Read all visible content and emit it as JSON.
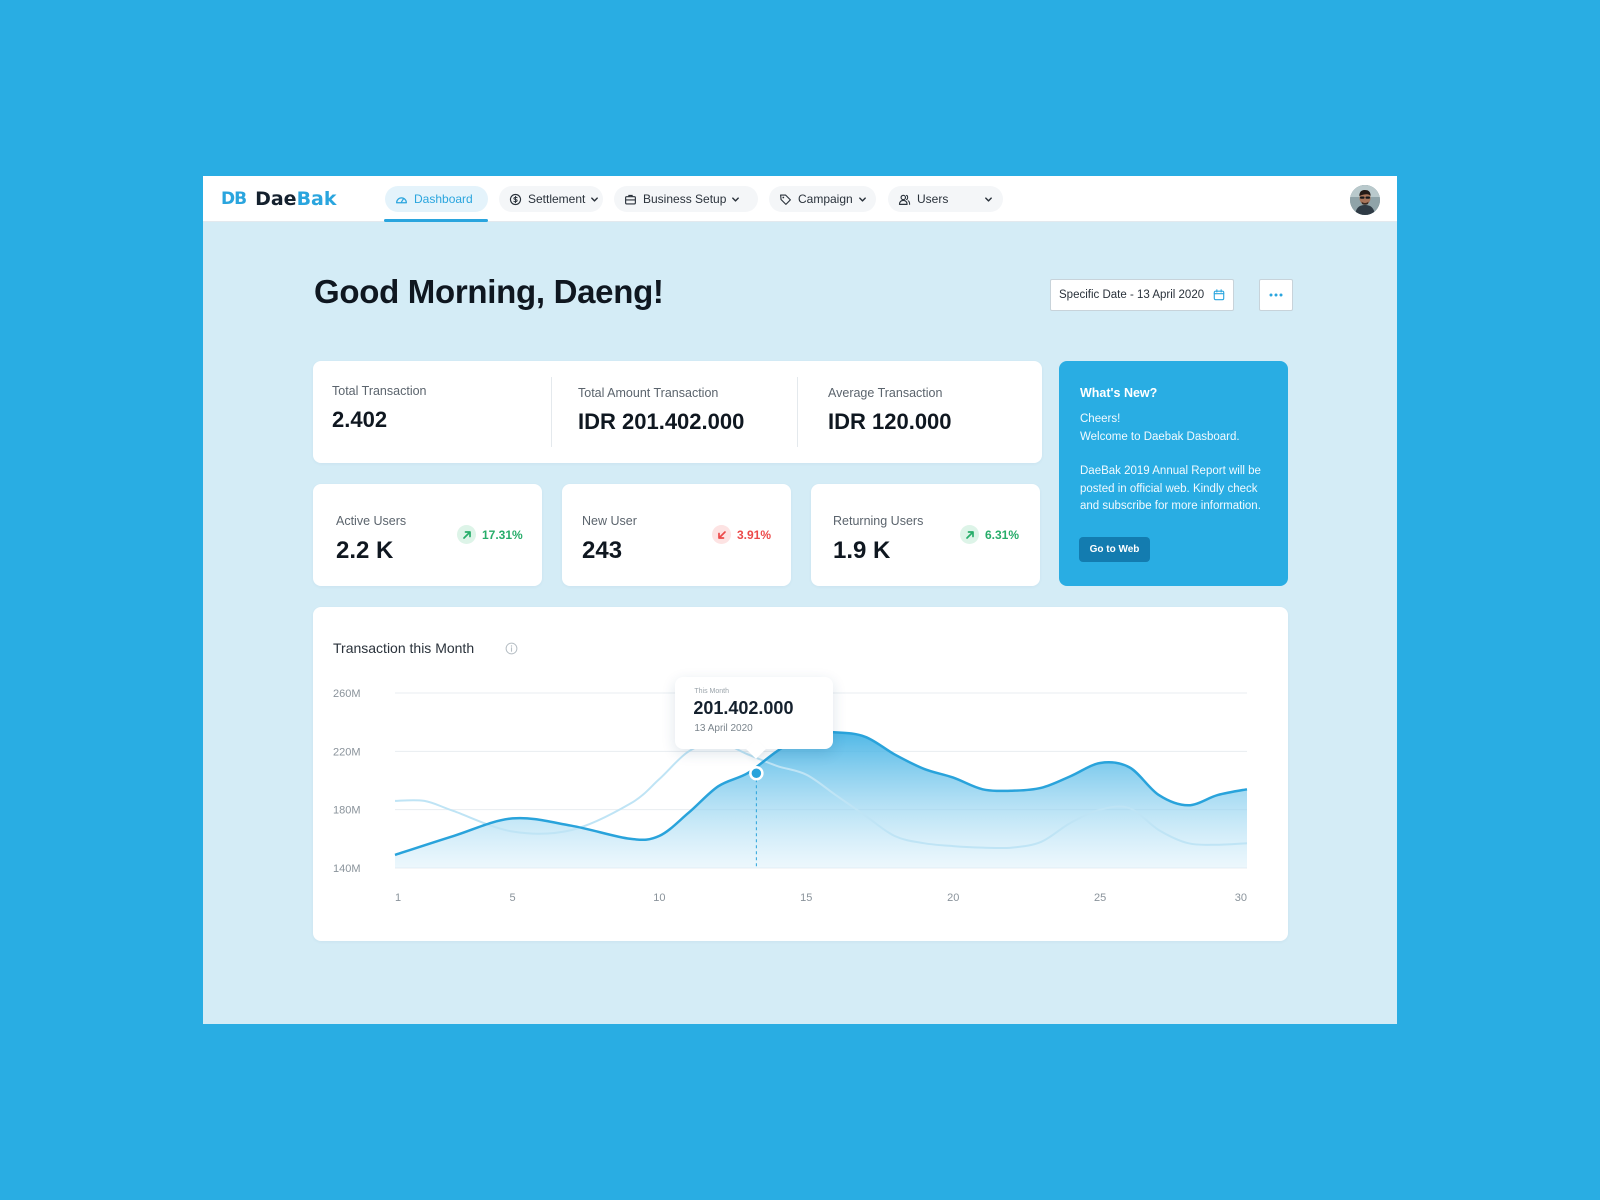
{
  "brand": {
    "mark": "DB",
    "name_primary": "Dae",
    "name_accent": "Bak",
    "accent_color": "#2aa5de"
  },
  "nav": {
    "items": [
      {
        "label": "Dashboard",
        "icon": "speedometer-icon",
        "active": true
      },
      {
        "label": "Settlement",
        "icon": "coin-icon"
      },
      {
        "label": "Business Setup",
        "icon": "briefcase-icon"
      },
      {
        "label": "Campaign",
        "icon": "tag-icon"
      },
      {
        "label": "Users",
        "icon": "users-icon"
      }
    ]
  },
  "header": {
    "greeting": "Good Morning, Daeng!",
    "date_filter": "Specific Date - 13 April 2020"
  },
  "summary": [
    {
      "label": "Total Transaction",
      "value": "2.402"
    },
    {
      "label": "Total Amount Transaction",
      "value": "IDR 201.402.000"
    },
    {
      "label": "Average Transaction",
      "value": "IDR 120.000"
    }
  ],
  "stats": [
    {
      "label": "Active Users",
      "value": "2.2 K",
      "trend": "17.31%",
      "direction": "up"
    },
    {
      "label": "New User",
      "value": "243",
      "trend": "3.91%",
      "direction": "down"
    },
    {
      "label": "Returning Users",
      "value": "1.9 K",
      "trend": "6.31%",
      "direction": "up"
    }
  ],
  "news": {
    "title": "What's New?",
    "line1": "Cheers!",
    "line2": "Welcome to Daebak Dasboard.",
    "paragraph": "DaeBak 2019 Annual Report will be posted in official web. Kindly check and subscribe for more information.",
    "button": "Go to Web"
  },
  "chart_data": {
    "type": "area",
    "title": "Transaction this Month",
    "y_ticks": [
      "260M",
      "220M",
      "180M",
      "140M"
    ],
    "x_ticks": [
      "1",
      "5",
      "10",
      "15",
      "20",
      "25",
      "30"
    ],
    "ylim": [
      140,
      260
    ],
    "xlim": [
      1,
      30
    ],
    "grid": true,
    "series": [
      {
        "role": "current",
        "color": "#29a3db",
        "x": [
          1,
          3,
          5,
          7,
          9,
          10,
          11,
          12,
          13,
          14,
          15,
          16,
          17,
          18,
          19,
          20,
          21,
          22,
          23,
          24,
          25,
          26,
          27,
          28,
          29,
          30
        ],
        "values": [
          149,
          162,
          174,
          169,
          160,
          162,
          178,
          196,
          205,
          220,
          232,
          233,
          230,
          218,
          208,
          202,
          194,
          193,
          195,
          203,
          212,
          209,
          190,
          183,
          190,
          194
        ]
      },
      {
        "role": "comparison",
        "color": "#bfe4f5",
        "x": [
          1,
          2,
          3,
          5,
          7,
          9,
          10,
          11,
          12,
          13,
          14,
          15,
          16,
          17,
          18,
          19,
          20,
          21,
          22,
          23,
          24,
          25,
          26,
          27,
          28,
          29,
          30
        ],
        "values": [
          186,
          186,
          179,
          165,
          166,
          184,
          201,
          220,
          226,
          218,
          210,
          204,
          190,
          176,
          162,
          157,
          155,
          154,
          154,
          158,
          171,
          180,
          181,
          166,
          157,
          156,
          157
        ]
      }
    ],
    "tooltip": {
      "label": "This Month",
      "value": "201.402.000",
      "date": "13 April 2020",
      "x": 13.3,
      "y": 205
    }
  }
}
